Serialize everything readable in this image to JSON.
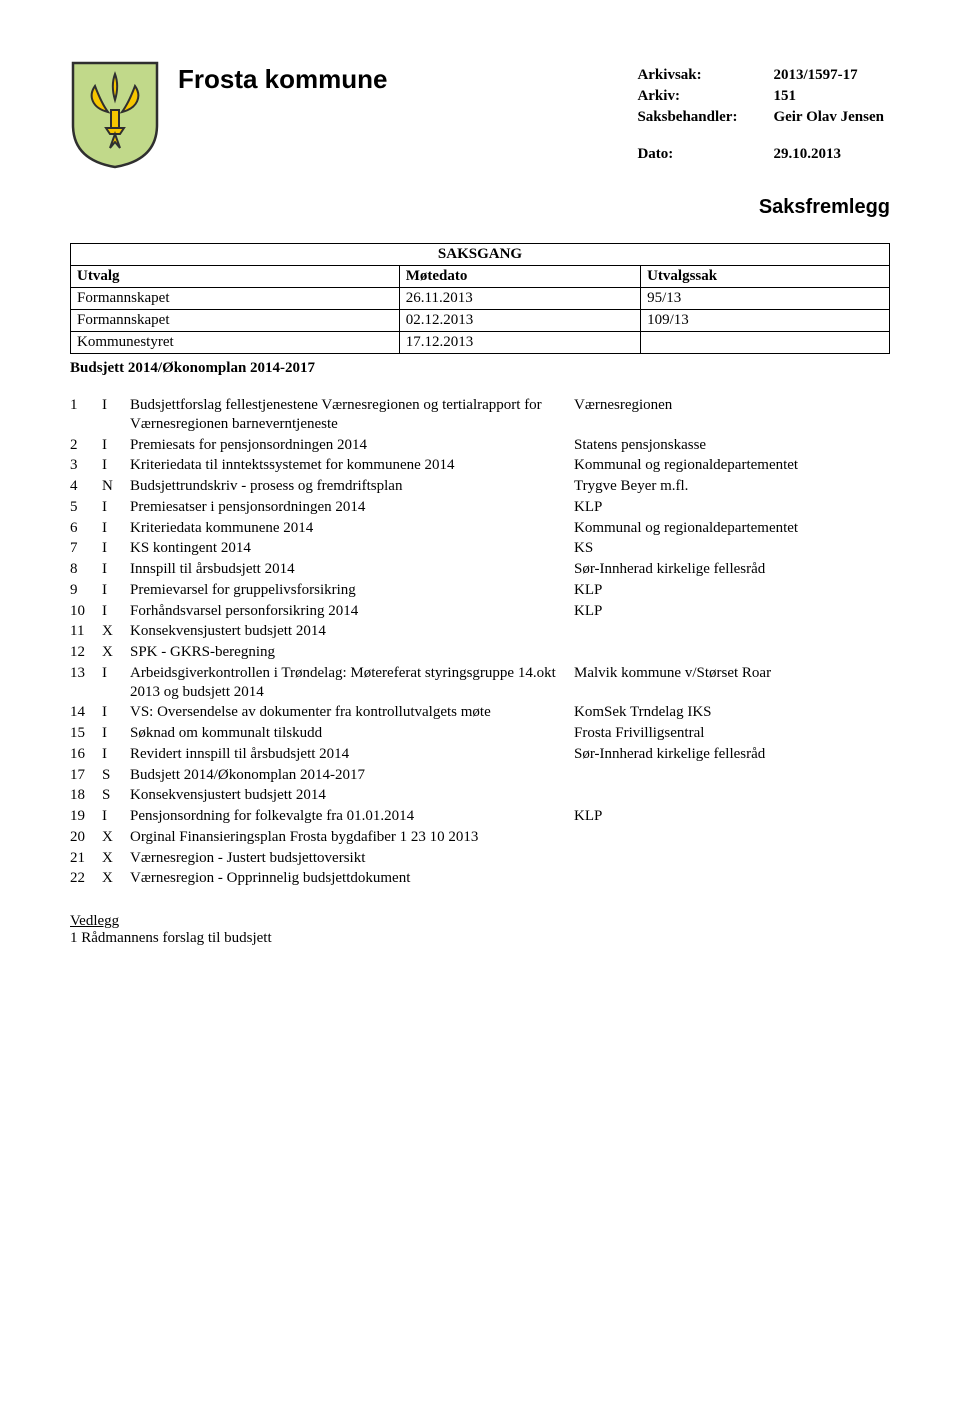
{
  "header": {
    "kommune": "Frosta kommune",
    "meta": [
      {
        "label": "Arkivsak:",
        "value": "2013/1597-17"
      },
      {
        "label": "Arkiv:",
        "value": "151"
      },
      {
        "label": "Saksbehandler:",
        "value": "Geir Olav Jensen"
      }
    ],
    "dato_label": "Dato:",
    "dato_value": "29.10.2013",
    "crest_colors": {
      "shield_fill": "#c1d98a",
      "shield_border": "#2f2f2f",
      "lily_fill": "#f6c600",
      "lily_border": "#2f2f2f"
    }
  },
  "saksfremlegg": "Saksfremlegg",
  "saksgang": {
    "title": "SAKSGANG",
    "columns": [
      "Utvalg",
      "Møtedato",
      "Utvalgssak"
    ],
    "rows": [
      [
        "Formannskapet",
        "26.11.2013",
        "95/13"
      ],
      [
        "Formannskapet",
        "02.12.2013",
        "109/13"
      ],
      [
        "Kommunestyret",
        "17.12.2013",
        ""
      ]
    ]
  },
  "budsjett_title": "Budsjett 2014/Økonomplan 2014-2017",
  "documents": [
    {
      "n": "1",
      "c": "I",
      "desc": "Budsjettforslag fellestjenestene Værnesregionen og tertialrapport for Værnesregionen barneverntjeneste",
      "src": "Værnesregionen"
    },
    {
      "n": "2",
      "c": "I",
      "desc": "Premiesats for pensjonsordningen 2014",
      "src": "Statens pensjonskasse"
    },
    {
      "n": "3",
      "c": "I",
      "desc": "Kriteriedata til inntektssystemet for kommunene 2014",
      "src": "Kommunal og regionaldepartementet"
    },
    {
      "n": "4",
      "c": "N",
      "desc": "Budsjettrundskriv - prosess og fremdriftsplan",
      "src": "Trygve Beyer m.fl."
    },
    {
      "n": "5",
      "c": "I",
      "desc": "Premiesatser i pensjonsordningen 2014",
      "src": "KLP"
    },
    {
      "n": "6",
      "c": "I",
      "desc": "Kriteriedata kommunene 2014",
      "src": "Kommunal og regionaldepartementet"
    },
    {
      "n": "7",
      "c": "I",
      "desc": "KS kontingent 2014",
      "src": "KS"
    },
    {
      "n": "8",
      "c": "I",
      "desc": "Innspill til årsbudsjett 2014",
      "src": "Sør-Innherad kirkelige fellesråd"
    },
    {
      "n": "9",
      "c": "I",
      "desc": "Premievarsel for gruppelivsforsikring",
      "src": "KLP"
    },
    {
      "n": "10",
      "c": "I",
      "desc": "Forhåndsvarsel personforsikring 2014",
      "src": "KLP"
    },
    {
      "n": "11",
      "c": "X",
      "desc": "Konsekvensjustert budsjett 2014",
      "src": ""
    },
    {
      "n": "12",
      "c": "X",
      "desc": "SPK - GKRS-beregning",
      "src": ""
    },
    {
      "n": "13",
      "c": "I",
      "desc": "Arbeidsgiverkontrollen i Trøndelag: Møtereferat styringsgruppe 14.okt 2013 og budsjett 2014",
      "src": "Malvik kommune v/Størset Roar"
    },
    {
      "n": "14",
      "c": "I",
      "desc": "VS: Oversendelse av dokumenter fra kontrollutvalgets møte",
      "src": "KomSek Trndelag IKS"
    },
    {
      "n": "15",
      "c": "I",
      "desc": "Søknad om kommunalt tilskudd",
      "src": "Frosta Frivilligsentral"
    },
    {
      "n": "16",
      "c": "I",
      "desc": "Revidert innspill til årsbudsjett 2014",
      "src": "Sør-Innherad kirkelige fellesråd"
    },
    {
      "n": "17",
      "c": "S",
      "desc": "Budsjett 2014/Økonomplan 2014-2017",
      "src": ""
    },
    {
      "n": "18",
      "c": "S",
      "desc": "Konsekvensjustert budsjett 2014",
      "src": ""
    },
    {
      "n": "19",
      "c": "I",
      "desc": "Pensjonsordning for folkevalgte fra 01.01.2014",
      "src": "KLP"
    },
    {
      "n": "20",
      "c": "X",
      "desc": "Orginal Finansieringsplan Frosta bygdafiber 1 23 10 2013",
      "src": ""
    },
    {
      "n": "21",
      "c": "X",
      "desc": "Værnesregion - Justert budsjettoversikt",
      "src": ""
    },
    {
      "n": "22",
      "c": "X",
      "desc": "Værnesregion - Opprinnelig budsjettdokument",
      "src": ""
    }
  ],
  "vedlegg": {
    "title": "Vedlegg",
    "items": [
      {
        "n": "1",
        "text": "Rådmannens forslag til budsjett"
      }
    ]
  }
}
